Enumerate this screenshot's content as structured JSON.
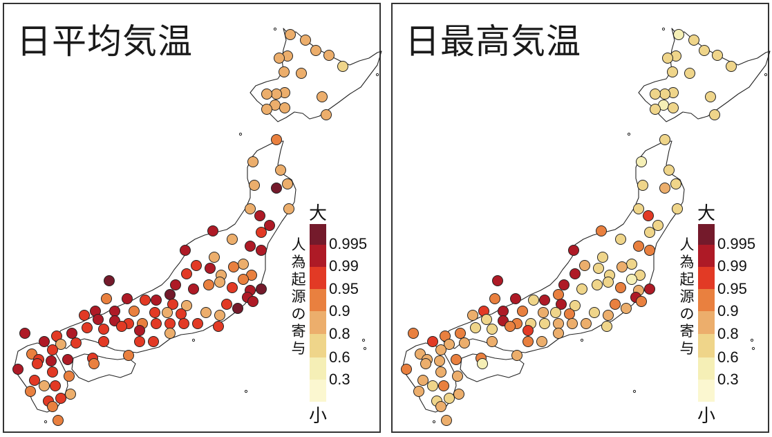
{
  "colors": {
    "border": "#333333",
    "coast": "#222222",
    "station_stroke": "#222222",
    "scale": [
      "#FBF7D0",
      "#F5EFB6",
      "#EFD58A",
      "#ECAE6C",
      "#E9803F",
      "#E23A25",
      "#AE1A26",
      "#741A2B"
    ]
  },
  "panels": [
    {
      "title": "日平均気温",
      "scheme": "mean"
    },
    {
      "title": "日最高気温",
      "scheme": "max"
    }
  ],
  "colorbar": {
    "top_label": "大",
    "bottom_label": "小",
    "ticks": [
      "0.995",
      "0.99",
      "0.95",
      "0.9",
      "0.8",
      "0.6",
      "0.3"
    ],
    "vertical_label": "人為起源の寄与"
  }
}
